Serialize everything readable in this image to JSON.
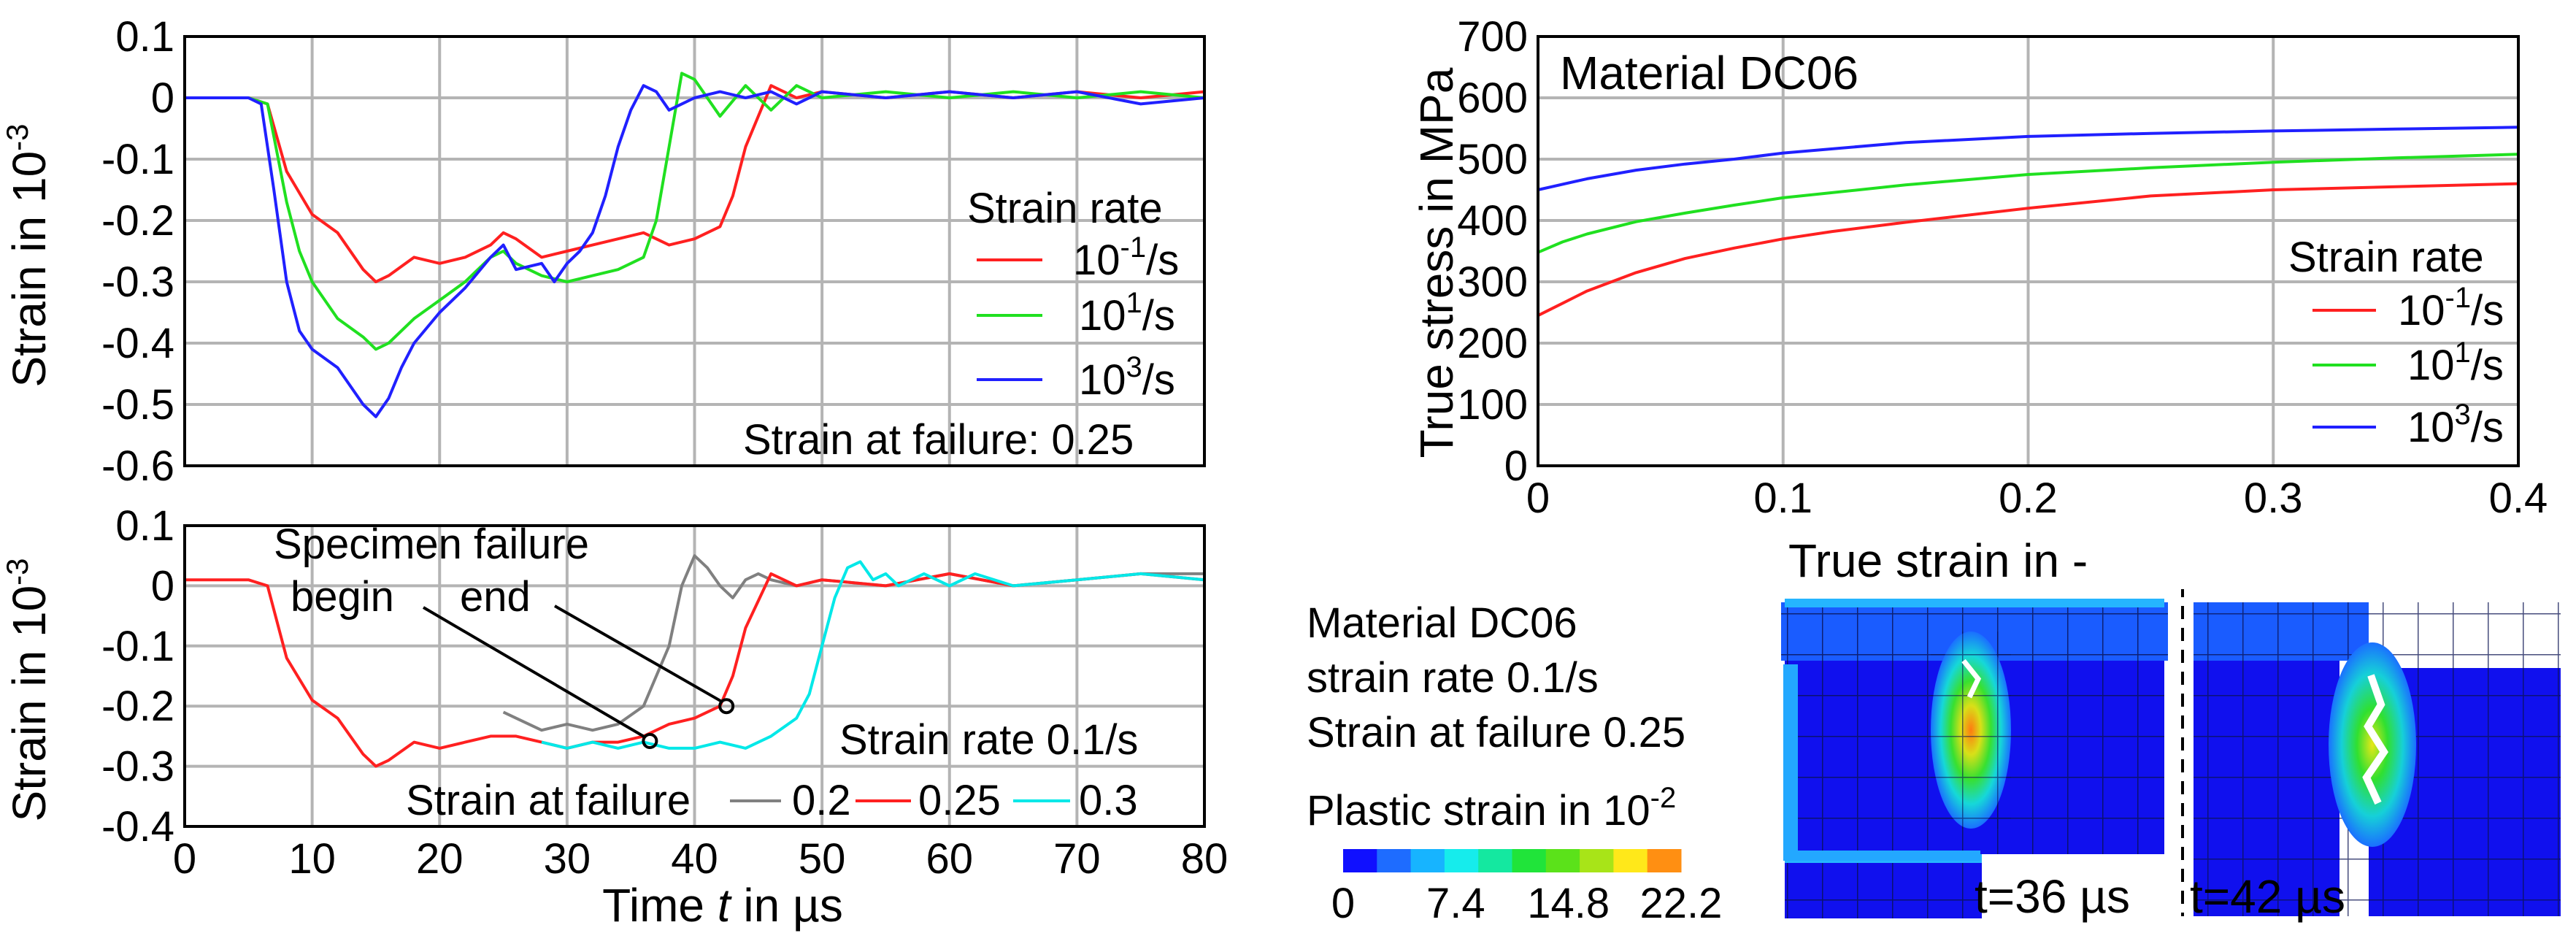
{
  "chart_data": [
    {
      "type": "line",
      "ylabel": "Strain in 10",
      "ylabel_exp": "-3",
      "xlim": [
        0,
        80
      ],
      "ylim": [
        -0.6,
        0.1
      ],
      "x_ticks": [
        "0",
        "10",
        "20",
        "30",
        "40",
        "50",
        "60",
        "70",
        "80"
      ],
      "y_ticks": [
        "0.1",
        "0",
        "-0.1",
        "-0.2",
        "-0.3",
        "-0.4",
        "-0.5",
        "-0.6"
      ],
      "legend_title": "Strain rate",
      "legend_base": [
        "10",
        "10",
        "10"
      ],
      "legend_exp": [
        "-1",
        "1",
        "3"
      ],
      "legend_unit": [
        "/s",
        "/s",
        "/s"
      ],
      "annotation": "Strain at failure: 0.25",
      "series": [
        {
          "name": "10^-1/s",
          "color": "#ff2020",
          "x": [
            0,
            5,
            6.5,
            8,
            10,
            12,
            14,
            15,
            16,
            18,
            20,
            22,
            24,
            25,
            26,
            28,
            30,
            32,
            34,
            36,
            38,
            40,
            42,
            43,
            44,
            46,
            48,
            50,
            55,
            60,
            65,
            70,
            75,
            80
          ],
          "y": [
            0,
            0,
            -0.01,
            -0.12,
            -0.19,
            -0.22,
            -0.28,
            -0.3,
            -0.29,
            -0.26,
            -0.27,
            -0.26,
            -0.24,
            -0.22,
            -0.23,
            -0.26,
            -0.25,
            -0.24,
            -0.23,
            -0.22,
            -0.24,
            -0.23,
            -0.21,
            -0.16,
            -0.08,
            0.02,
            0,
            0.01,
            0,
            0.01,
            0,
            0.01,
            0,
            0.01
          ]
        },
        {
          "name": "10^1/s",
          "color": "#20e020",
          "x": [
            0,
            5,
            6.5,
            8,
            9,
            10,
            12,
            14,
            15,
            16,
            18,
            20,
            22,
            24,
            25,
            26,
            28,
            30,
            32,
            34,
            35,
            36,
            37,
            38,
            39,
            40,
            42,
            44,
            46,
            48,
            50,
            55,
            60,
            65,
            70,
            75,
            80
          ],
          "y": [
            0,
            0,
            -0.01,
            -0.17,
            -0.25,
            -0.3,
            -0.36,
            -0.39,
            -0.41,
            -0.4,
            -0.36,
            -0.33,
            -0.3,
            -0.26,
            -0.25,
            -0.27,
            -0.29,
            -0.3,
            -0.29,
            -0.28,
            -0.27,
            -0.26,
            -0.2,
            -0.08,
            0.04,
            0.03,
            -0.03,
            0.02,
            -0.02,
            0.02,
            0,
            0.01,
            0,
            0.01,
            0,
            0.01,
            0
          ]
        },
        {
          "name": "10^3/s",
          "color": "#2020ff",
          "x": [
            0,
            5,
            6,
            7,
            8,
            9,
            10,
            12,
            14,
            15,
            16,
            17,
            18,
            20,
            22,
            24,
            25,
            26,
            28,
            29,
            30,
            31,
            32,
            33,
            34,
            35,
            36,
            37,
            38,
            39,
            40,
            42,
            44,
            46,
            48,
            50,
            55,
            60,
            65,
            70,
            75,
            80
          ],
          "y": [
            0,
            0,
            -0.01,
            -0.15,
            -0.3,
            -0.38,
            -0.41,
            -0.44,
            -0.5,
            -0.52,
            -0.49,
            -0.44,
            -0.4,
            -0.35,
            -0.31,
            -0.26,
            -0.24,
            -0.28,
            -0.27,
            -0.3,
            -0.27,
            -0.25,
            -0.22,
            -0.16,
            -0.08,
            -0.02,
            0.02,
            0.01,
            -0.02,
            -0.01,
            0,
            0.01,
            0,
            0.01,
            -0.01,
            0.01,
            0,
            0.01,
            0,
            0.01,
            -0.01,
            0
          ]
        }
      ]
    },
    {
      "type": "line",
      "xlabel": "Time t in µs",
      "ylabel": "Strain in 10",
      "ylabel_exp": "-3",
      "xlim": [
        0,
        80
      ],
      "ylim": [
        -0.4,
        0.1
      ],
      "x_ticks": [
        "0",
        "10",
        "20",
        "30",
        "40",
        "50",
        "60",
        "70",
        "80"
      ],
      "y_ticks": [
        "0.1",
        "0",
        "-0.1",
        "-0.2",
        "-0.3",
        "-0.4"
      ],
      "annotation_title": "Specimen failure",
      "annotation_begin": "begin",
      "annotation_end": "end",
      "annotation_begin_point": [
        36.5,
        -0.258
      ],
      "annotation_end_point": [
        42.5,
        -0.2
      ],
      "strain_rate_label": "Strain rate 0.1/s",
      "legend_title": "Strain at failure",
      "legend_labels": [
        "0.2",
        "0.25",
        "0.3"
      ],
      "series": [
        {
          "name": "0.2",
          "color": "#808080",
          "x": [
            25,
            26,
            28,
            30,
            32,
            34,
            36,
            38,
            39,
            40,
            41,
            42,
            43,
            44,
            45,
            46,
            48,
            50,
            55,
            60,
            65,
            70,
            75,
            80
          ],
          "y": [
            -0.21,
            -0.22,
            -0.24,
            -0.23,
            -0.24,
            -0.23,
            -0.2,
            -0.1,
            0.0,
            0.05,
            0.03,
            0.0,
            -0.02,
            0.01,
            0.02,
            0.01,
            0,
            0.01,
            0,
            0.02,
            0,
            0.01,
            0.02,
            0.02
          ]
        },
        {
          "name": "0.25",
          "color": "#ff2020",
          "x": [
            0,
            5,
            6.5,
            8,
            10,
            12,
            14,
            15,
            16,
            18,
            20,
            22,
            24,
            26,
            28,
            30,
            32,
            34,
            36,
            38,
            40,
            42,
            43,
            44,
            46,
            48,
            50,
            55,
            60,
            65,
            70,
            75,
            80
          ],
          "y": [
            0.01,
            0.01,
            0,
            -0.12,
            -0.19,
            -0.22,
            -0.28,
            -0.3,
            -0.29,
            -0.26,
            -0.27,
            -0.26,
            -0.25,
            -0.25,
            -0.26,
            -0.27,
            -0.26,
            -0.26,
            -0.25,
            -0.23,
            -0.22,
            -0.2,
            -0.15,
            -0.07,
            0.02,
            0,
            0.01,
            0,
            0.02,
            0,
            0.01,
            0.02,
            0.01
          ]
        },
        {
          "name": "0.3",
          "color": "#00e8e8",
          "x": [
            28,
            30,
            32,
            34,
            36,
            38,
            40,
            42,
            44,
            46,
            48,
            49,
            50,
            51,
            52,
            53,
            54,
            55,
            56,
            58,
            60,
            62,
            65,
            70,
            75,
            80
          ],
          "y": [
            -0.26,
            -0.27,
            -0.26,
            -0.27,
            -0.26,
            -0.27,
            -0.27,
            -0.26,
            -0.27,
            -0.25,
            -0.22,
            -0.18,
            -0.1,
            -0.02,
            0.03,
            0.04,
            0.01,
            0.02,
            0.0,
            0.02,
            0.0,
            0.02,
            0.0,
            0.01,
            0.02,
            0.01
          ]
        }
      ]
    },
    {
      "type": "line",
      "title": "Material DC06",
      "xlabel": "True strain in -",
      "ylabel": "True stress in MPa",
      "xlim": [
        0,
        0.4
      ],
      "ylim": [
        0,
        700
      ],
      "x_ticks": [
        "0",
        "0.1",
        "0.2",
        "0.3",
        "0.4"
      ],
      "y_ticks": [
        "700",
        "600",
        "500",
        "400",
        "300",
        "200",
        "100",
        "0"
      ],
      "legend_title": "Strain rate",
      "legend_base": [
        "10",
        "10",
        "10"
      ],
      "legend_exp": [
        "-1",
        "1",
        "3"
      ],
      "legend_unit": [
        "/s",
        "/s",
        "/s"
      ],
      "series": [
        {
          "name": "10^-1/s",
          "color": "#ff2020",
          "x": [
            0,
            0.01,
            0.02,
            0.04,
            0.06,
            0.08,
            0.1,
            0.12,
            0.15,
            0.2,
            0.25,
            0.3,
            0.35,
            0.4
          ],
          "y": [
            245,
            265,
            285,
            315,
            338,
            355,
            370,
            382,
            397,
            420,
            440,
            450,
            455,
            460
          ]
        },
        {
          "name": "10^1/s",
          "color": "#20e020",
          "x": [
            0,
            0.01,
            0.02,
            0.04,
            0.06,
            0.08,
            0.1,
            0.15,
            0.2,
            0.25,
            0.3,
            0.35,
            0.4
          ],
          "y": [
            348,
            365,
            378,
            398,
            412,
            425,
            437,
            458,
            475,
            486,
            495,
            502,
            508
          ]
        },
        {
          "name": "10^3/s",
          "color": "#2020ff",
          "x": [
            0,
            0.02,
            0.04,
            0.06,
            0.08,
            0.1,
            0.15,
            0.2,
            0.25,
            0.3,
            0.35,
            0.4
          ],
          "y": [
            450,
            468,
            482,
            492,
            500,
            510,
            527,
            537,
            542,
            546,
            549,
            552
          ]
        }
      ]
    }
  ],
  "simulation": {
    "info_lines": [
      "Material DC06",
      "strain rate 0.1/s",
      "Strain at failure 0.25"
    ],
    "colorbar_title": "Plastic strain in 10",
    "colorbar_exp": "-2",
    "colorbar_colors": [
      "#1010ff",
      "#1e6cff",
      "#17b4ff",
      "#16ecec",
      "#14e8a0",
      "#20e43a",
      "#5be21a",
      "#a8e418",
      "#ffe81a",
      "#ff8f12"
    ],
    "colorbar_ticks": [
      "0",
      "7.4",
      "14.8",
      "22.2"
    ],
    "panel_left_time": "t=36 µs",
    "panel_right_time": "t=42 µs"
  }
}
